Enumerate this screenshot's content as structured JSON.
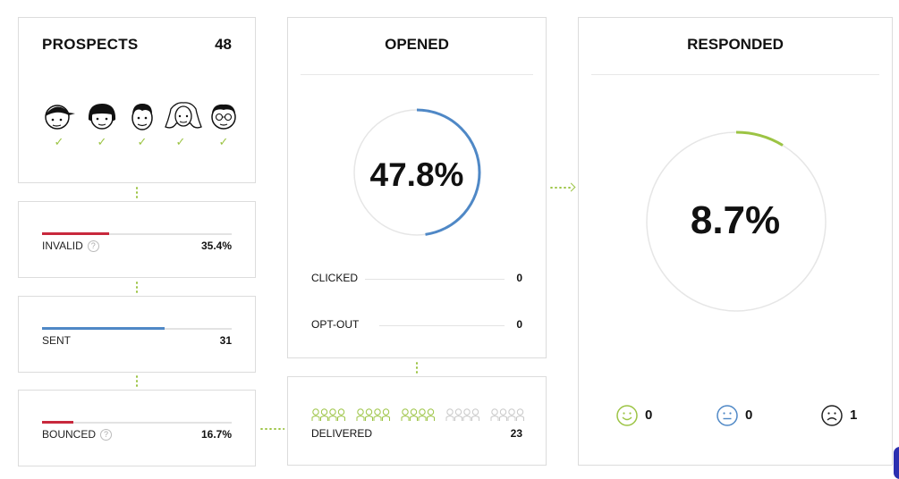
{
  "prospects": {
    "title": "PROSPECTS",
    "count": "48",
    "faces": [
      "face-cap",
      "face-bob",
      "face-man",
      "face-long-hair",
      "face-glasses"
    ]
  },
  "invalid": {
    "label": "INVALID",
    "value": "35.4%",
    "bar_fraction": 0.354,
    "color": "#c8283c"
  },
  "sent": {
    "label": "SENT",
    "value": "31",
    "bar_fraction": 0.646,
    "color": "#4f88c6"
  },
  "bounced": {
    "label": "BOUNCED",
    "value": "16.7%",
    "bar_fraction": 0.167,
    "color": "#c8283c"
  },
  "opened": {
    "title": "OPENED",
    "percent": "47.8%",
    "fraction": 0.478,
    "color": "#4f88c6",
    "clicked": {
      "label": "CLICKED",
      "value": "0"
    },
    "optout": {
      "label": "OPT-OUT",
      "value": "0"
    }
  },
  "delivered": {
    "label": "DELIVERED",
    "value": "23",
    "groups": 5
  },
  "responded": {
    "title": "RESPONDED",
    "percent": "8.7%",
    "fraction": 0.087,
    "color": "#9cc444",
    "sentiment": {
      "positive": {
        "icon": "happy-face-icon",
        "value": "0",
        "color": "#9cc444"
      },
      "neutral": {
        "icon": "neutral-face-icon",
        "value": "0",
        "color": "#4f88c6"
      },
      "negative": {
        "icon": "sad-face-icon",
        "value": "1",
        "color": "#222222"
      }
    }
  },
  "colors": {
    "connector": "#9cc444",
    "border": "#dcdcdc"
  }
}
